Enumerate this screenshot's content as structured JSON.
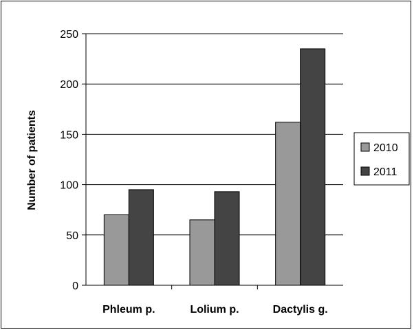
{
  "chart_data": {
    "type": "bar",
    "title": "",
    "xlabel": "",
    "ylabel": "Number of patients",
    "categories": [
      "Phleum p.",
      "Lolium p.",
      "Dactylis g."
    ],
    "series": [
      {
        "name": "2010",
        "values": [
          70,
          65,
          162
        ],
        "color": "#999999"
      },
      {
        "name": "2011",
        "values": [
          95,
          93,
          235
        ],
        "color": "#444444"
      }
    ],
    "ylim": [
      0,
      250
    ],
    "yticks": [
      0,
      50,
      100,
      150,
      200,
      250
    ],
    "grid": true,
    "legend_position": "right"
  }
}
